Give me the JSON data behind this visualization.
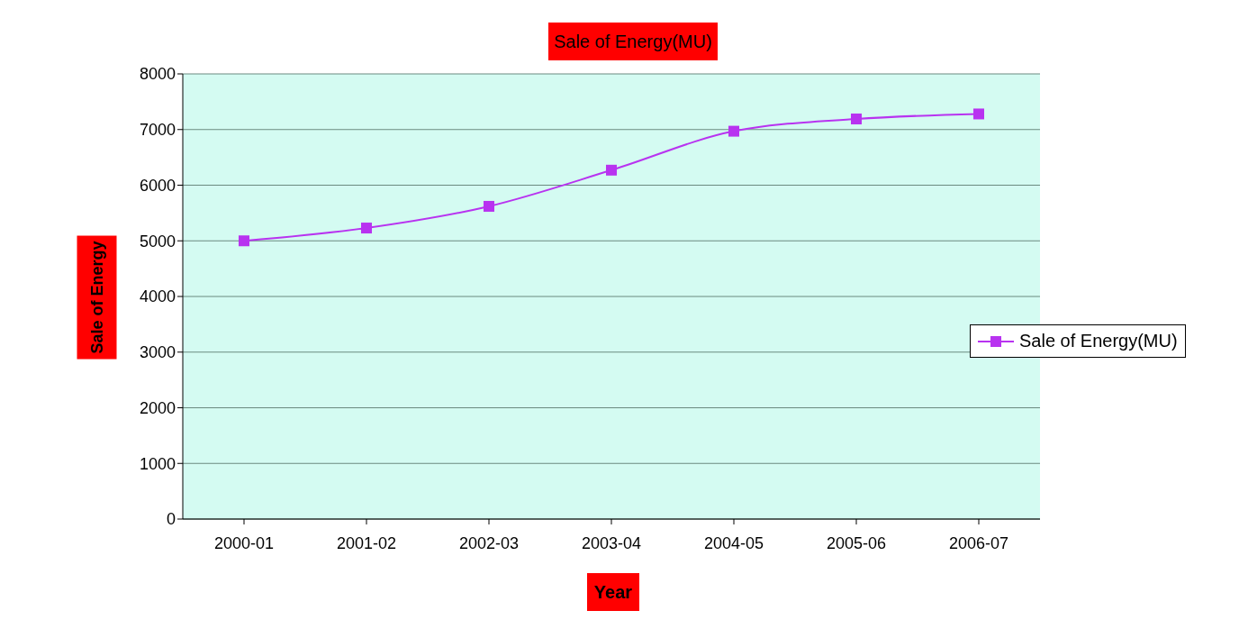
{
  "chart_data": {
    "type": "line",
    "title": "Sale of Energy(MU)",
    "xlabel": "Year",
    "ylabel": "Sale of Energy",
    "categories": [
      "2000-01",
      "2001-02",
      "2002-03",
      "2003-04",
      "2004-05",
      "2005-06",
      "2006-07"
    ],
    "series": [
      {
        "name": "Sale of Energy(MU)",
        "color": "#b833f0",
        "values": [
          5000,
          5230,
          5620,
          6270,
          6970,
          7190,
          7280
        ]
      }
    ],
    "ylim": [
      0,
      8000
    ],
    "yticks": [
      0,
      1000,
      2000,
      3000,
      4000,
      5000,
      6000,
      7000,
      8000
    ],
    "grid": "y",
    "legend": "right",
    "marker": "square",
    "line_style": "solid"
  }
}
